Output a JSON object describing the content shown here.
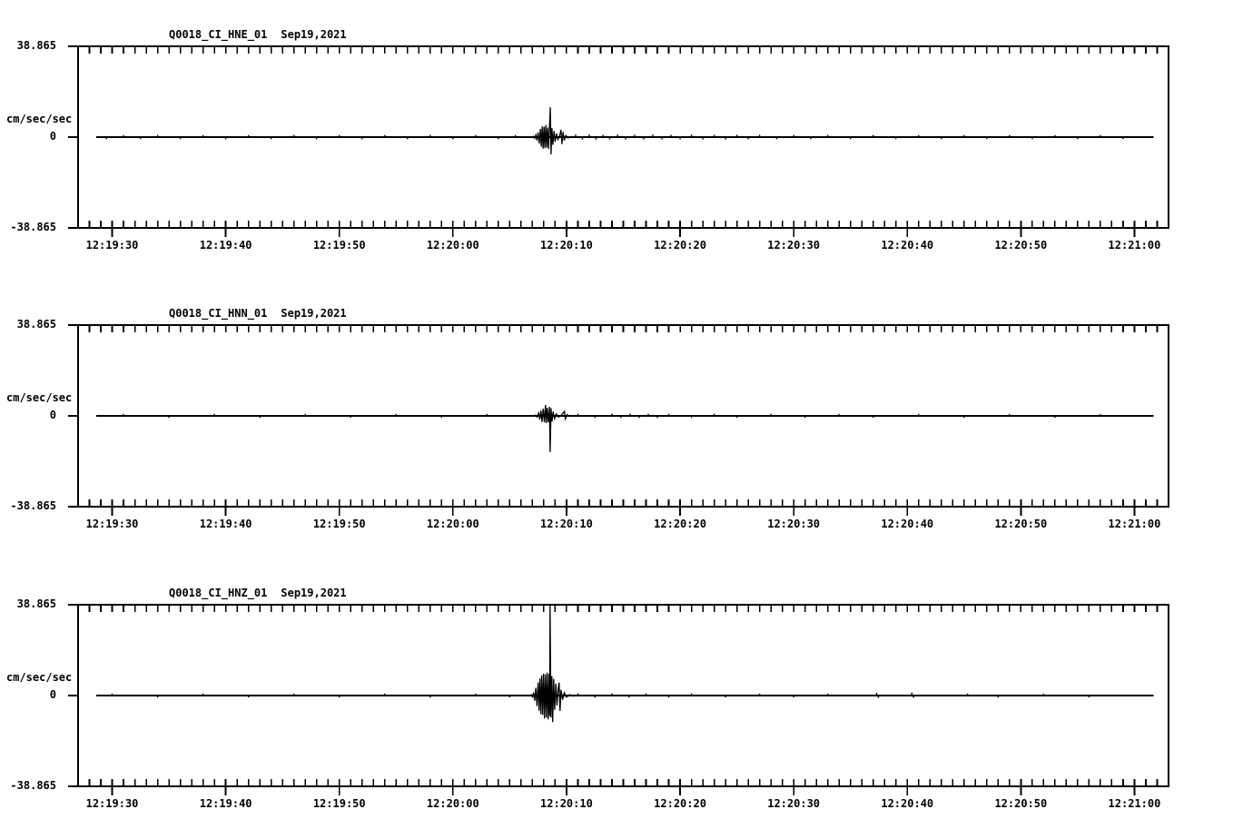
{
  "page": {
    "background": "#ffffff",
    "foreground": "#000000"
  },
  "chart_data": [
    {
      "type": "line",
      "title": "Q0018_CI_HNE_01",
      "date": "Sep19,2021",
      "ylabel": "cm/sec/sec",
      "yticks": [
        "38.865",
        "0",
        "-38.865"
      ],
      "ylim": [
        -38.865,
        38.865
      ],
      "xlim_seconds": [
        0,
        96
      ],
      "minor_tick_seconds": 1,
      "xticks": [
        {
          "label": "12:19:30",
          "t": 3
        },
        {
          "label": "12:19:40",
          "t": 13
        },
        {
          "label": "12:19:50",
          "t": 23
        },
        {
          "label": "12:20:00",
          "t": 33
        },
        {
          "label": "12:20:10",
          "t": 43
        },
        {
          "label": "12:20:20",
          "t": 53
        },
        {
          "label": "12:20:30",
          "t": 63
        },
        {
          "label": "12:20:40",
          "t": 73
        },
        {
          "label": "12:20:50",
          "t": 83
        },
        {
          "label": "12:21:00",
          "t": 93
        }
      ],
      "trace": {
        "baseline_value": 0,
        "start_s": 1.6,
        "end_s": 94.7,
        "burst": [
          [
            40.1,
            0.3
          ],
          [
            40.2,
            -0.5
          ],
          [
            40.3,
            0.9
          ],
          [
            40.4,
            -1.4
          ],
          [
            40.5,
            2.0
          ],
          [
            40.6,
            -2.7
          ],
          [
            40.7,
            3.5
          ],
          [
            40.78,
            -4.1
          ],
          [
            40.86,
            4.6
          ],
          [
            40.94,
            -4.9
          ],
          [
            41.02,
            4.4
          ],
          [
            41.1,
            -4.7
          ],
          [
            41.18,
            5.2
          ],
          [
            41.26,
            -4.5
          ],
          [
            41.34,
            4.1
          ],
          [
            41.42,
            -5.1
          ],
          [
            41.5,
            4.5
          ],
          [
            41.57,
            12.8
          ],
          [
            41.64,
            -7.4
          ],
          [
            41.72,
            3.9
          ],
          [
            41.8,
            -3.3
          ],
          [
            41.9,
            2.6
          ],
          [
            42.0,
            -2.0
          ],
          [
            42.12,
            1.5
          ],
          [
            42.25,
            -1.0
          ],
          [
            42.4,
            0.6
          ],
          [
            42.52,
            3.1
          ],
          [
            42.6,
            -3.0
          ],
          [
            42.7,
            2.2
          ],
          [
            42.8,
            -1.4
          ],
          [
            42.95,
            0.7
          ],
          [
            43.15,
            -0.4
          ],
          [
            43.4,
            0.25
          ]
        ],
        "noise": [
          [
            2.5,
            -0.35
          ],
          [
            4,
            0.3
          ],
          [
            5.5,
            -0.3
          ],
          [
            7,
            0.35
          ],
          [
            9,
            -0.3
          ],
          [
            11,
            0.3
          ],
          [
            13,
            -0.35
          ],
          [
            15,
            0.3
          ],
          [
            17,
            -0.3
          ],
          [
            19,
            0.35
          ],
          [
            21,
            -0.3
          ],
          [
            23,
            0.3
          ],
          [
            25,
            -0.35
          ],
          [
            27,
            0.3
          ],
          [
            29,
            -0.3
          ],
          [
            31,
            0.35
          ],
          [
            33,
            -0.35
          ],
          [
            35,
            0.3
          ],
          [
            37,
            -0.3
          ],
          [
            38.5,
            0.3
          ],
          [
            43.8,
            0.45
          ],
          [
            44.4,
            -0.4
          ],
          [
            45,
            0.45
          ],
          [
            45.6,
            -0.45
          ],
          [
            46.2,
            0.4
          ],
          [
            46.8,
            -0.4
          ],
          [
            47.5,
            0.45
          ],
          [
            48.2,
            -0.4
          ],
          [
            49,
            0.4
          ],
          [
            49.8,
            -0.4
          ],
          [
            50.6,
            0.45
          ],
          [
            51.4,
            -0.4
          ],
          [
            52.2,
            0.4
          ],
          [
            53,
            -0.4
          ],
          [
            54,
            0.45
          ],
          [
            55,
            -0.4
          ],
          [
            56,
            0.4
          ],
          [
            57,
            -0.4
          ],
          [
            58,
            0.4
          ],
          [
            59,
            -0.35
          ],
          [
            60,
            0.4
          ],
          [
            61.5,
            -0.35
          ],
          [
            63,
            0.35
          ],
          [
            64.5,
            -0.35
          ],
          [
            66,
            0.35
          ],
          [
            68,
            -0.3
          ],
          [
            70,
            0.35
          ],
          [
            72,
            -0.3
          ],
          [
            74,
            0.3
          ],
          [
            76,
            -0.3
          ],
          [
            78,
            0.3
          ],
          [
            80,
            -0.3
          ],
          [
            82,
            0.3
          ],
          [
            84,
            -0.3
          ],
          [
            86,
            0.3
          ],
          [
            88,
            -0.3
          ],
          [
            90,
            0.3
          ],
          [
            92,
            -0.3
          ]
        ]
      }
    },
    {
      "type": "line",
      "title": "Q0018_CI_HNN_01",
      "date": "Sep19,2021",
      "ylabel": "cm/sec/sec",
      "yticks": [
        "38.865",
        "0",
        "-38.865"
      ],
      "ylim": [
        -38.865,
        38.865
      ],
      "xlim_seconds": [
        0,
        96
      ],
      "minor_tick_seconds": 1,
      "xticks": [
        {
          "label": "12:19:30",
          "t": 3
        },
        {
          "label": "12:19:40",
          "t": 13
        },
        {
          "label": "12:19:50",
          "t": 23
        },
        {
          "label": "12:20:00",
          "t": 33
        },
        {
          "label": "12:20:10",
          "t": 43
        },
        {
          "label": "12:20:20",
          "t": 53
        },
        {
          "label": "12:20:30",
          "t": 63
        },
        {
          "label": "12:20:40",
          "t": 73
        },
        {
          "label": "12:20:50",
          "t": 83
        },
        {
          "label": "12:21:00",
          "t": 93
        }
      ],
      "trace": {
        "baseline_value": 0,
        "start_s": 1.6,
        "end_s": 94.7,
        "burst": [
          [
            40.25,
            0.3
          ],
          [
            40.4,
            -0.5
          ],
          [
            40.55,
            1.2
          ],
          [
            40.65,
            -1.6
          ],
          [
            40.75,
            2.3
          ],
          [
            40.85,
            -2.6
          ],
          [
            40.95,
            3.1
          ],
          [
            41.05,
            -2.8
          ],
          [
            41.15,
            4.7
          ],
          [
            41.22,
            -3.1
          ],
          [
            41.3,
            3.5
          ],
          [
            41.4,
            -2.7
          ],
          [
            41.5,
            3.9
          ],
          [
            41.56,
            -15.5
          ],
          [
            41.64,
            3.3
          ],
          [
            41.72,
            -2.4
          ],
          [
            41.82,
            1.8
          ],
          [
            41.95,
            -1.2
          ],
          [
            42.1,
            0.8
          ],
          [
            42.3,
            -0.5
          ],
          [
            42.55,
            0.3
          ],
          [
            42.82,
            1.9
          ],
          [
            42.9,
            -1.3
          ],
          [
            43.05,
            0.5
          ],
          [
            43.3,
            -0.25
          ]
        ],
        "noise": [
          [
            4,
            0.25
          ],
          [
            8,
            -0.25
          ],
          [
            12,
            0.25
          ],
          [
            16,
            -0.25
          ],
          [
            20,
            0.25
          ],
          [
            24,
            -0.25
          ],
          [
            28,
            0.25
          ],
          [
            32,
            -0.25
          ],
          [
            36,
            0.25
          ],
          [
            44,
            0.3
          ],
          [
            45.5,
            -0.3
          ],
          [
            47,
            0.35
          ],
          [
            47.8,
            -0.3
          ],
          [
            48.6,
            0.35
          ],
          [
            49.4,
            -0.3
          ],
          [
            50.2,
            0.3
          ],
          [
            51,
            -0.3
          ],
          [
            52,
            0.3
          ],
          [
            54,
            -0.3
          ],
          [
            56,
            0.3
          ],
          [
            58,
            -0.25
          ],
          [
            61,
            0.25
          ],
          [
            64,
            -0.25
          ],
          [
            67,
            0.25
          ],
          [
            70,
            -0.25
          ],
          [
            74,
            0.25
          ],
          [
            78,
            -0.25
          ],
          [
            82,
            0.25
          ],
          [
            86,
            -0.25
          ],
          [
            90,
            0.25
          ]
        ]
      }
    },
    {
      "type": "line",
      "title": "Q0018_CI_HNZ_01",
      "date": "Sep19,2021",
      "ylabel": "cm/sec/sec",
      "yticks": [
        "38.865",
        "0",
        "-38.865"
      ],
      "ylim": [
        -38.865,
        38.865
      ],
      "xlim_seconds": [
        0,
        96
      ],
      "minor_tick_seconds": 1,
      "xticks": [
        {
          "label": "12:19:30",
          "t": 3
        },
        {
          "label": "12:19:40",
          "t": 13
        },
        {
          "label": "12:19:50",
          "t": 23
        },
        {
          "label": "12:20:00",
          "t": 33
        },
        {
          "label": "12:20:10",
          "t": 43
        },
        {
          "label": "12:20:20",
          "t": 53
        },
        {
          "label": "12:20:30",
          "t": 63
        },
        {
          "label": "12:20:40",
          "t": 73
        },
        {
          "label": "12:20:50",
          "t": 83
        },
        {
          "label": "12:21:00",
          "t": 93
        }
      ],
      "trace": {
        "baseline_value": 0,
        "start_s": 1.6,
        "end_s": 94.7,
        "burst": [
          [
            39.9,
            0.3
          ],
          [
            40.0,
            -0.6
          ],
          [
            40.1,
            1.3
          ],
          [
            40.2,
            -2.2
          ],
          [
            40.3,
            3.3
          ],
          [
            40.4,
            -4.5
          ],
          [
            40.5,
            5.6
          ],
          [
            40.58,
            -6.5
          ],
          [
            40.66,
            7.3
          ],
          [
            40.74,
            -8.0
          ],
          [
            40.82,
            8.7
          ],
          [
            40.9,
            -8.3
          ],
          [
            40.98,
            9.4
          ],
          [
            41.06,
            -9.8
          ],
          [
            41.14,
            9.0
          ],
          [
            41.22,
            -9.4
          ],
          [
            41.3,
            9.8
          ],
          [
            41.38,
            -10.2
          ],
          [
            41.46,
            9.2
          ],
          [
            41.52,
            -8.8
          ],
          [
            41.55,
            38.8
          ],
          [
            41.63,
            -9.4
          ],
          [
            41.71,
            8.3
          ],
          [
            41.78,
            -11.4
          ],
          [
            41.87,
            7.1
          ],
          [
            41.96,
            -6.1
          ],
          [
            42.06,
            5.1
          ],
          [
            42.16,
            -4.2
          ],
          [
            42.28,
            3.2
          ],
          [
            42.35,
            5.5
          ],
          [
            42.43,
            -6.6
          ],
          [
            42.52,
            2.4
          ],
          [
            42.65,
            -1.8
          ],
          [
            42.8,
            1.2
          ],
          [
            43.0,
            -0.7
          ],
          [
            43.3,
            0.4
          ],
          [
            43.6,
            -0.25
          ]
        ],
        "noise": [
          [
            3,
            0.25
          ],
          [
            7,
            -0.25
          ],
          [
            11,
            0.25
          ],
          [
            15,
            -0.25
          ],
          [
            19,
            0.25
          ],
          [
            23,
            -0.25
          ],
          [
            27,
            0.25
          ],
          [
            31,
            -0.25
          ],
          [
            35,
            0.25
          ],
          [
            38,
            -0.25
          ],
          [
            44,
            0.35
          ],
          [
            45.5,
            -0.3
          ],
          [
            47,
            0.3
          ],
          [
            48.5,
            -0.3
          ],
          [
            50,
            0.3
          ],
          [
            52,
            -0.3
          ],
          [
            54,
            0.3
          ],
          [
            57,
            -0.25
          ],
          [
            60,
            0.25
          ],
          [
            63,
            -0.25
          ],
          [
            66,
            0.25
          ],
          [
            70.3,
            0.6
          ],
          [
            70.45,
            -0.45
          ],
          [
            73.4,
            0.65
          ],
          [
            73.55,
            -0.4
          ],
          [
            78.3,
            0.3
          ],
          [
            81,
            -0.3
          ],
          [
            85,
            0.25
          ],
          [
            89,
            -0.25
          ]
        ]
      }
    }
  ]
}
